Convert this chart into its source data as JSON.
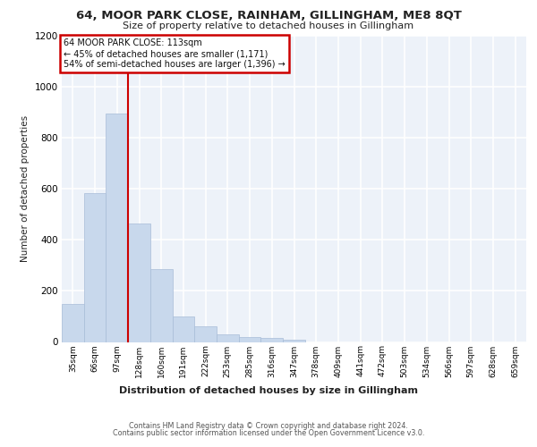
{
  "title": "64, MOOR PARK CLOSE, RAINHAM, GILLINGHAM, ME8 8QT",
  "subtitle": "Size of property relative to detached houses in Gillingham",
  "xlabel": "Distribution of detached houses by size in Gillingham",
  "ylabel": "Number of detached properties",
  "bar_color": "#c8d8ec",
  "bar_edge_color": "#a8bcd8",
  "background_color": "#edf2f9",
  "grid_color": "#ffffff",
  "annotation_box_edgecolor": "#cc0000",
  "annotation_line_color": "#cc0000",
  "categories": [
    "35sqm",
    "66sqm",
    "97sqm",
    "128sqm",
    "160sqm",
    "191sqm",
    "222sqm",
    "253sqm",
    "285sqm",
    "316sqm",
    "347sqm",
    "378sqm",
    "409sqm",
    "441sqm",
    "472sqm",
    "503sqm",
    "534sqm",
    "566sqm",
    "597sqm",
    "628sqm",
    "659sqm"
  ],
  "values": [
    150,
    585,
    895,
    465,
    285,
    100,
    60,
    30,
    20,
    15,
    10,
    0,
    0,
    0,
    0,
    0,
    0,
    0,
    0,
    0,
    0
  ],
  "ylim": [
    0,
    1200
  ],
  "yticks": [
    0,
    200,
    400,
    600,
    800,
    1000,
    1200
  ],
  "property_label": "64 MOOR PARK CLOSE: 113sqm",
  "annotation_line1": "← 45% of detached houses are smaller (1,171)",
  "annotation_line2": "54% of semi-detached houses are larger (1,396) →",
  "red_line_x": 2.5,
  "footer_line1": "Contains HM Land Registry data © Crown copyright and database right 2024.",
  "footer_line2": "Contains public sector information licensed under the Open Government Licence v3.0.",
  "fig_bg": "#ffffff"
}
